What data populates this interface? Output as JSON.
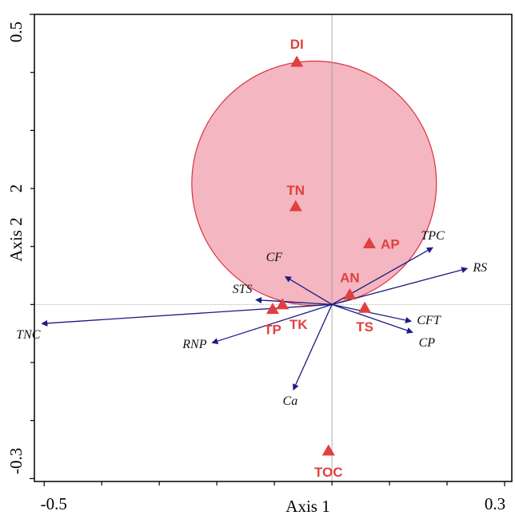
{
  "chart_data": {
    "type": "biplot",
    "xlabel": "Axis 1",
    "ylabel": "Axis 2",
    "xlim": [
      -0.517,
      0.3125
    ],
    "ylim": [
      -0.305,
      0.5
    ],
    "xticks": [
      -0.5,
      0.3
    ],
    "yticks": [
      -0.3,
      0.5
    ],
    "xminorticks": [
      -0.4,
      -0.3,
      -0.2,
      -0.1,
      0,
      0.1,
      0.2
    ],
    "yminorticks": [
      -0.2,
      -0.1,
      0,
      0.1,
      0.2,
      0.3,
      0.4
    ],
    "ylabel_extra": "2",
    "circle": {
      "cx": -0.031,
      "cy": 0.209,
      "r": 0.2125,
      "color": "#f4b6c0",
      "edge": "#d9303a"
    },
    "points": {
      "color": "#e0403f",
      "labels": [
        "DI",
        "TN",
        "AP",
        "AN",
        "TS",
        "TK",
        "TP",
        "TOC"
      ],
      "x": [
        -0.061,
        -0.063,
        0.065,
        0.031,
        0.057,
        -0.086,
        -0.103,
        -0.006
      ],
      "y": [
        0.418,
        0.169,
        0.105,
        0.017,
        -0.006,
        0.0,
        -0.008,
        -0.252
      ]
    },
    "arrows": {
      "color": "#1c1a82",
      "labels": [
        "TPC",
        "RS",
        "CFT",
        "CP",
        "Ca",
        "RNP",
        "TNC",
        "STS",
        "CF"
      ],
      "x": [
        0.175,
        0.235,
        0.1375,
        0.14,
        -0.067,
        -0.208,
        -0.504,
        -0.132,
        -0.081
      ],
      "y": [
        0.098,
        0.062,
        -0.029,
        -0.048,
        -0.147,
        -0.066,
        -0.033,
        0.008,
        0.048
      ]
    }
  }
}
